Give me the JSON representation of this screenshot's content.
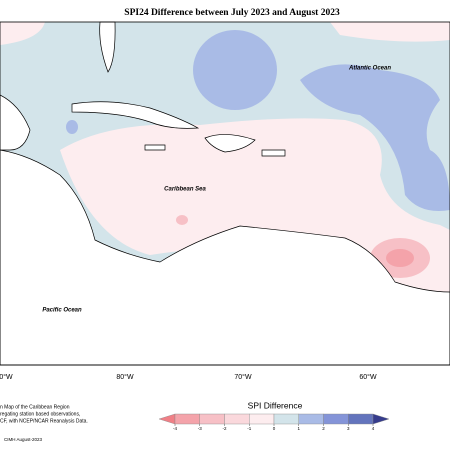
{
  "title": "SPI24 Difference between July 2023 and August 2023",
  "ocean_labels": [
    "Atlantic Ocean",
    "Caribbean Sea",
    "Pacific Ocean"
  ],
  "longitude_labels": [
    "0°W",
    "80°W",
    "70°W",
    "60°W"
  ],
  "colorbar": {
    "title": "SPI Difference",
    "ticks": [
      -4,
      -3,
      -2,
      -1,
      0,
      1,
      2,
      3,
      4
    ],
    "colors": [
      "#f07f86",
      "#f4a3aa",
      "#f7c0c6",
      "#fad8dc",
      "#fdedef",
      "#d3e4ea",
      "#a9bbe6",
      "#8494d8",
      "#6374bd",
      "#363c8c"
    ]
  },
  "credits": [
    "n Map of the Caribbean Region",
    "regating station based observations,",
    "CF, with NCEP/NCAR Reanalysis Data.",
    "CIMH August-2023"
  ]
}
